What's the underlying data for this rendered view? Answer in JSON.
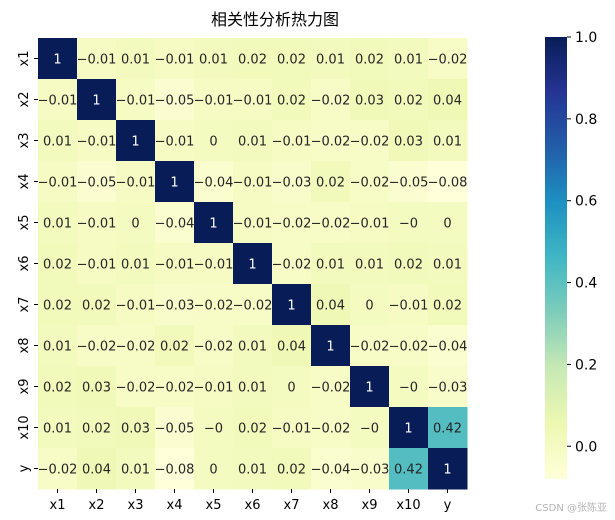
{
  "chart_data": {
    "type": "heatmap",
    "title": "相关性分析热力图",
    "x_labels": [
      "x1",
      "x2",
      "x3",
      "x4",
      "x5",
      "x6",
      "x7",
      "x8",
      "x9",
      "x10",
      "y"
    ],
    "y_labels": [
      "x1",
      "x2",
      "x3",
      "x4",
      "x5",
      "x6",
      "x7",
      "x8",
      "x9",
      "x10",
      "y"
    ],
    "values": [
      [
        1,
        -0.01,
        0.01,
        -0.01,
        0.01,
        0.02,
        0.02,
        0.01,
        0.02,
        0.01,
        -0.02
      ],
      [
        -0.01,
        1,
        -0.01,
        -0.05,
        -0.01,
        -0.01,
        0.02,
        -0.02,
        0.03,
        0.02,
        0.04
      ],
      [
        0.01,
        -0.01,
        1,
        -0.01,
        0,
        0.01,
        -0.01,
        -0.02,
        -0.02,
        0.03,
        0.01
      ],
      [
        -0.01,
        -0.05,
        -0.01,
        1,
        -0.04,
        -0.01,
        -0.03,
        0.02,
        -0.02,
        -0.05,
        -0.08
      ],
      [
        0.01,
        -0.01,
        0,
        -0.04,
        1,
        -0.01,
        -0.02,
        -0.02,
        -0.01,
        0,
        0
      ],
      [
        0.02,
        -0.01,
        0.01,
        -0.01,
        -0.01,
        1,
        -0.02,
        0.01,
        0.01,
        0.02,
        0.01
      ],
      [
        0.02,
        0.02,
        -0.01,
        -0.03,
        -0.02,
        -0.02,
        1,
        0.04,
        0,
        -0.01,
        0.02
      ],
      [
        0.01,
        -0.02,
        -0.02,
        0.02,
        -0.02,
        0.01,
        0.04,
        1,
        -0.02,
        -0.02,
        -0.04
      ],
      [
        0.02,
        0.03,
        -0.02,
        -0.02,
        -0.01,
        0.01,
        0,
        -0.02,
        1,
        0,
        -0.03
      ],
      [
        0.01,
        0.02,
        0.03,
        -0.05,
        0,
        0.02,
        -0.01,
        -0.02,
        0,
        1,
        0.42
      ],
      [
        -0.02,
        0.04,
        0.01,
        -0.08,
        0,
        0.01,
        0.02,
        -0.04,
        -0.03,
        0.42,
        1
      ]
    ],
    "cell_labels": [
      [
        "1",
        "−0.01",
        "0.01",
        "−0.01",
        "0.01",
        "0.02",
        "0.02",
        "0.01",
        "0.02",
        "0.01",
        "−0.02"
      ],
      [
        "−0.01",
        "1",
        "−0.01",
        "−0.05",
        "−0.01",
        "−0.01",
        "0.02",
        "−0.02",
        "0.03",
        "0.02",
        "0.04"
      ],
      [
        "0.01",
        "−0.01",
        "1",
        "−0.01",
        "0",
        "0.01",
        "−0.01",
        "−0.02",
        "−0.02",
        "0.03",
        "0.01"
      ],
      [
        "−0.01",
        "−0.05",
        "−0.01",
        "1",
        "−0.04",
        "−0.01",
        "−0.03",
        "0.02",
        "−0.02",
        "−0.05",
        "−0.08"
      ],
      [
        "0.01",
        "−0.01",
        "0",
        "−0.04",
        "1",
        "−0.01",
        "−0.02",
        "−0.02",
        "−0.01",
        "−0",
        "0"
      ],
      [
        "0.02",
        "−0.01",
        "0.01",
        "−0.01",
        "−0.01",
        "1",
        "−0.02",
        "0.01",
        "0.01",
        "0.02",
        "0.01"
      ],
      [
        "0.02",
        "0.02",
        "−0.01",
        "−0.03",
        "−0.02",
        "−0.02",
        "1",
        "0.04",
        "0",
        "−0.01",
        "0.02"
      ],
      [
        "0.01",
        "−0.02",
        "−0.02",
        "0.02",
        "−0.02",
        "0.01",
        "0.04",
        "1",
        "−0.02",
        "−0.02",
        "−0.04"
      ],
      [
        "0.02",
        "0.03",
        "−0.02",
        "−0.02",
        "−0.01",
        "0.01",
        "0",
        "−0.02",
        "1",
        "−0",
        "−0.03"
      ],
      [
        "0.01",
        "0.02",
        "0.03",
        "−0.05",
        "−0",
        "0.02",
        "−0.01",
        "−0.02",
        "−0",
        "1",
        "0.42"
      ],
      [
        "−0.02",
        "0.04",
        "0.01",
        "−0.08",
        "0",
        "0.01",
        "0.02",
        "−0.04",
        "−0.03",
        "0.42",
        "1"
      ]
    ],
    "colorbar": {
      "range": [
        -0.08,
        1.0
      ],
      "ticks": [
        0.0,
        0.2,
        0.4,
        0.6,
        0.8,
        1.0
      ],
      "tick_labels": [
        "0.0",
        "0.2",
        "0.4",
        "0.6",
        "0.8",
        "1.0"
      ],
      "colormap": "YlGnBu",
      "stops": [
        "#ffffd9",
        "#edf8b1",
        "#c7e9b4",
        "#7fcdbb",
        "#41b6c4",
        "#1d91c0",
        "#225ea8",
        "#253494",
        "#081d58"
      ]
    }
  },
  "watermark": "CSDN @张陈亚"
}
